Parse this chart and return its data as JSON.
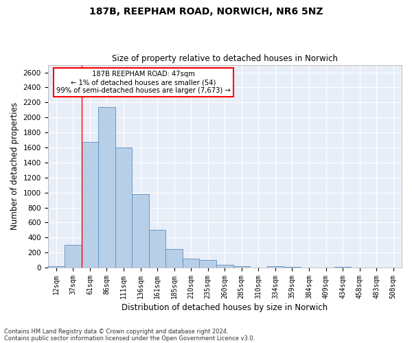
{
  "title_line1": "187B, REEPHAM ROAD, NORWICH, NR6 5NZ",
  "title_line2": "Size of property relative to detached houses in Norwich",
  "xlabel": "Distribution of detached houses by size in Norwich",
  "ylabel": "Number of detached properties",
  "categories": [
    "12sqm",
    "37sqm",
    "61sqm",
    "86sqm",
    "111sqm",
    "136sqm",
    "161sqm",
    "185sqm",
    "210sqm",
    "235sqm",
    "260sqm",
    "285sqm",
    "310sqm",
    "334sqm",
    "359sqm",
    "384sqm",
    "409sqm",
    "434sqm",
    "458sqm",
    "483sqm",
    "508sqm"
  ],
  "values": [
    15,
    300,
    1670,
    2140,
    1600,
    975,
    500,
    248,
    120,
    100,
    35,
    20,
    5,
    20,
    10,
    5,
    0,
    10,
    5,
    0,
    5
  ],
  "bar_color": "#b8cfe8",
  "bar_edge_color": "#5a8fc0",
  "ylim": [
    0,
    2700
  ],
  "yticks": [
    0,
    200,
    400,
    600,
    800,
    1000,
    1200,
    1400,
    1600,
    1800,
    2000,
    2200,
    2400,
    2600
  ],
  "annotation_text": "187B REEPHAM ROAD: 47sqm\n← 1% of detached houses are smaller (54)\n99% of semi-detached houses are larger (7,673) →",
  "annotation_box_color": "white",
  "annotation_box_edge": "red",
  "vline_x": 1.5,
  "vline_color": "red",
  "footer_line1": "Contains HM Land Registry data © Crown copyright and database right 2024.",
  "footer_line2": "Contains public sector information licensed under the Open Government Licence v3.0.",
  "plot_bg_color": "#e8eef8"
}
